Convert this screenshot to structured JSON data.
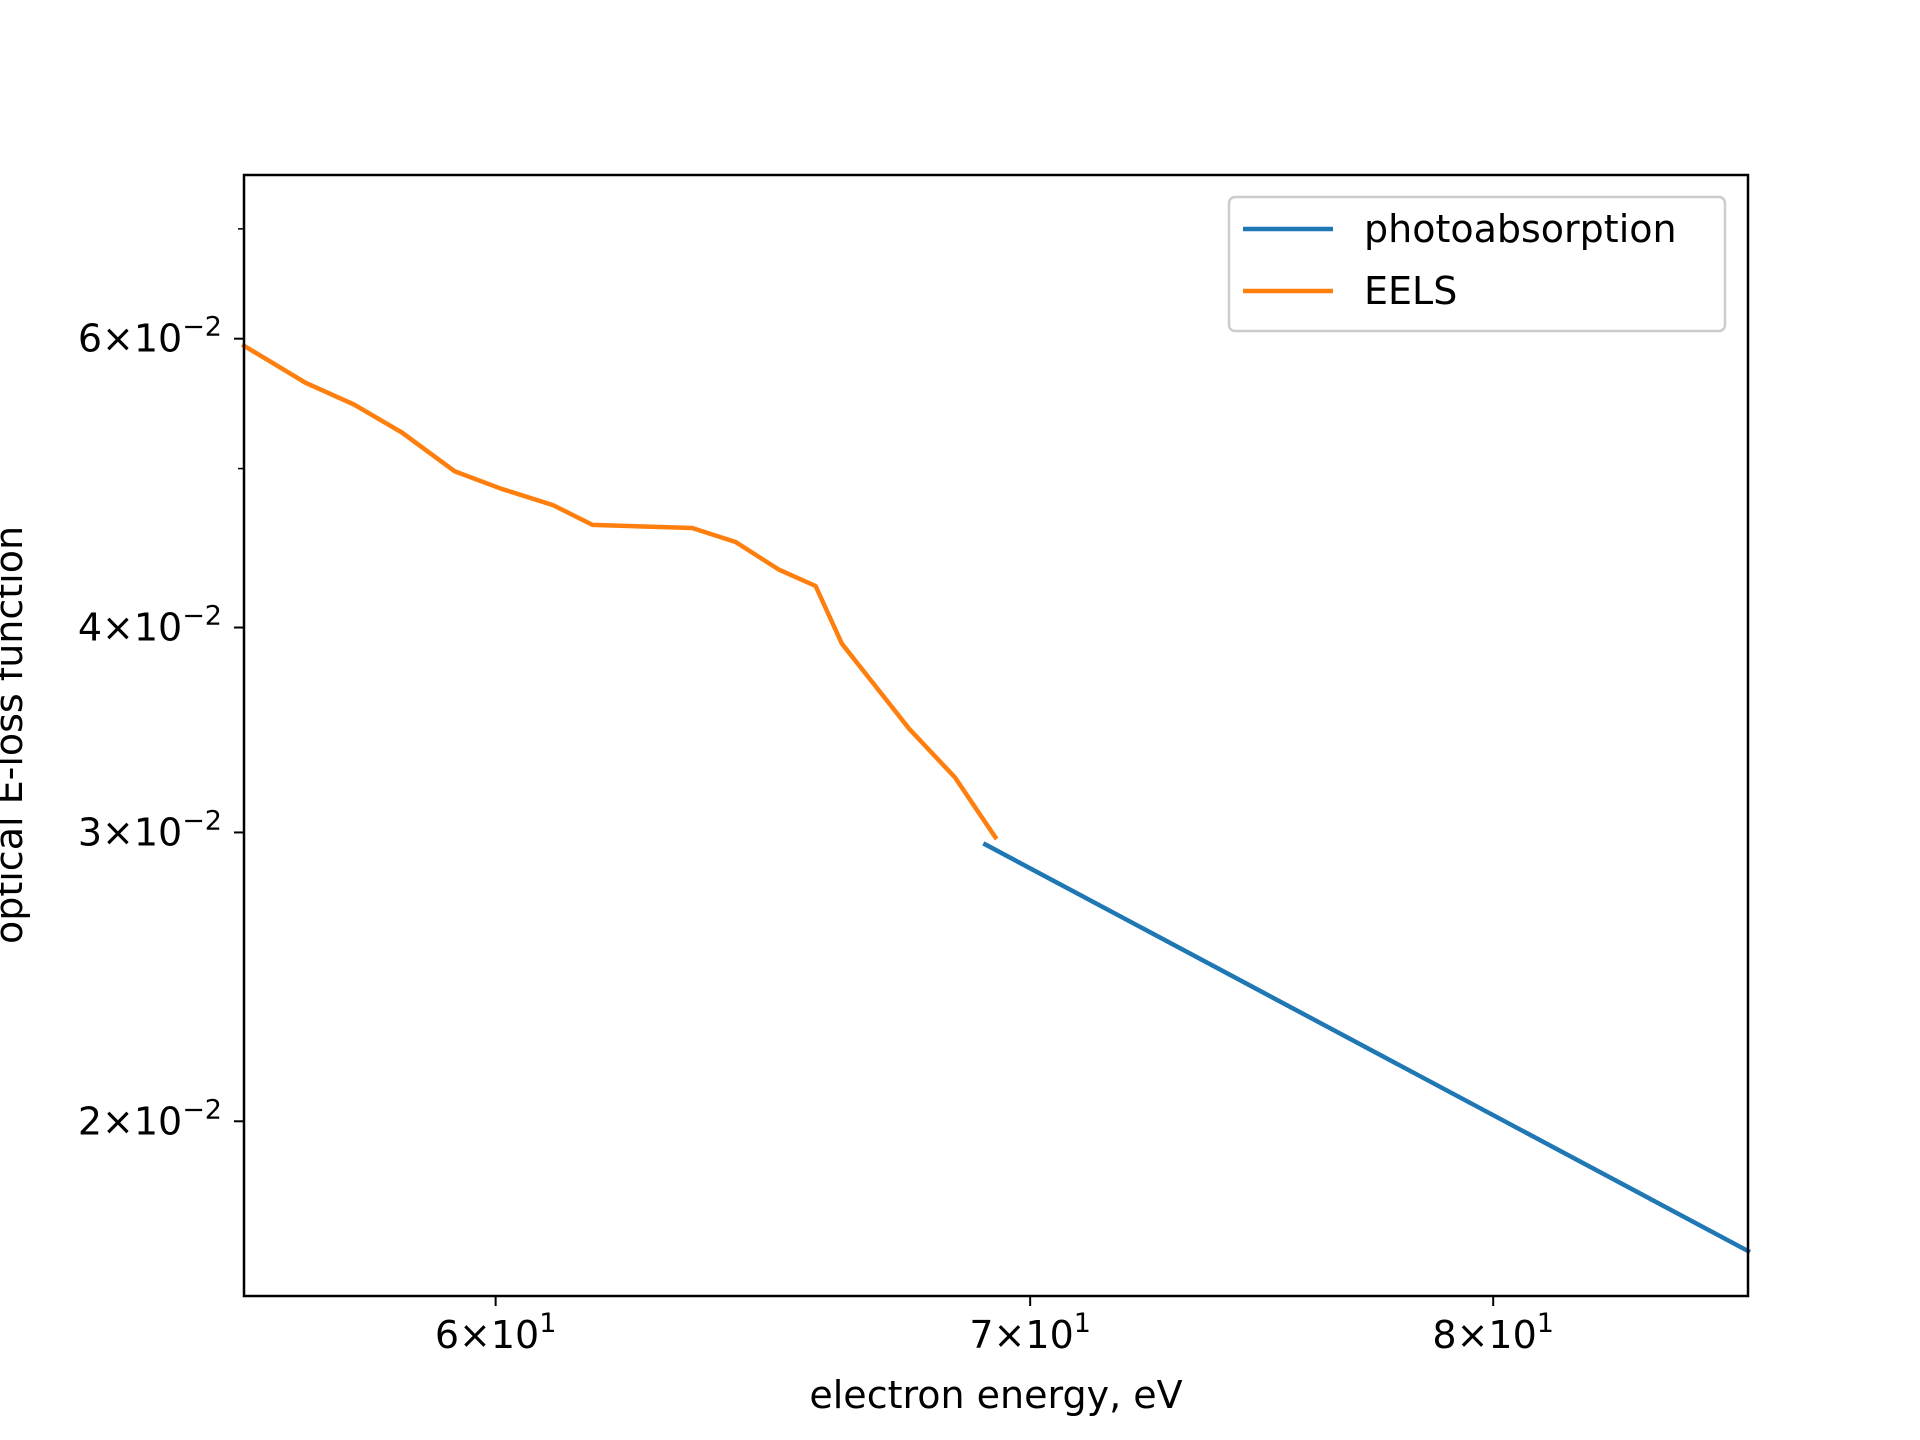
{
  "chart_data": {
    "type": "line",
    "title": "",
    "xlabel": "electron energy, eV",
    "ylabel": "optical E-loss function",
    "xscale": "log",
    "yscale": "log",
    "xlim": [
      55.8,
      86.1
    ],
    "ylim": [
      0.01565,
      0.0755
    ],
    "grid": false,
    "legend_position": "top-right",
    "x_ticks": [
      {
        "value": 60,
        "mantissa": "6",
        "exponent": "1"
      },
      {
        "value": 70,
        "mantissa": "7",
        "exponent": "1"
      },
      {
        "value": 80,
        "mantissa": "8",
        "exponent": "1"
      }
    ],
    "y_ticks": [
      {
        "value": 0.02,
        "mantissa": "2",
        "exponent": "−2"
      },
      {
        "value": 0.03,
        "mantissa": "3",
        "exponent": "−2"
      },
      {
        "value": 0.04,
        "mantissa": "4",
        "exponent": "−2"
      },
      {
        "value": 0.06,
        "mantissa": "6",
        "exponent": "−2"
      }
    ],
    "y_minor_ticks": [
      0.05,
      0.07
    ],
    "series": [
      {
        "name": "photoabsorption",
        "color": "#1f77b4",
        "x": [
          69.1,
          86.1
        ],
        "y": [
          0.0295,
          0.01667
        ]
      },
      {
        "name": "EELS",
        "color": "#ff7f0e",
        "x": [
          55.8,
          56.8,
          57.6,
          58.4,
          59.3,
          60.1,
          61.0,
          61.7,
          63.5,
          64.3,
          65.1,
          65.8,
          66.3,
          66.9,
          67.6,
          68.5,
          69.3
        ],
        "y": [
          0.0594,
          0.0564,
          0.0547,
          0.0526,
          0.0498,
          0.0486,
          0.0475,
          0.0462,
          0.046,
          0.0451,
          0.0434,
          0.0424,
          0.0391,
          0.037,
          0.0347,
          0.0324,
          0.0298
        ]
      }
    ]
  }
}
